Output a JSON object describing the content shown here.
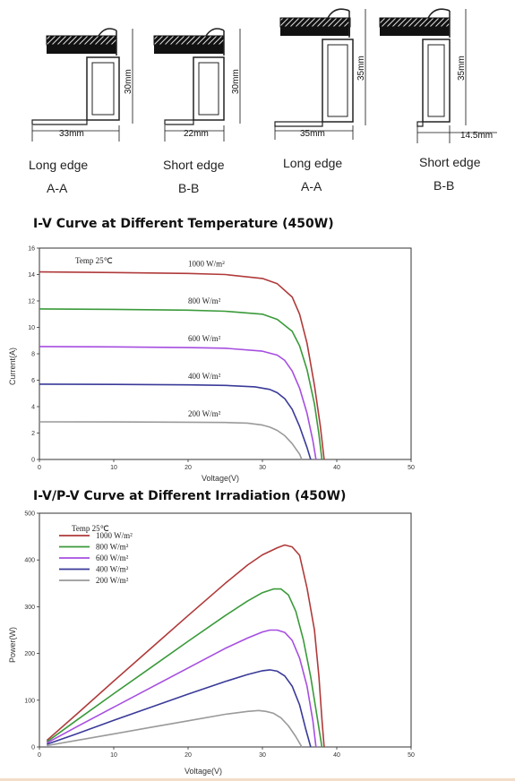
{
  "profiles": [
    {
      "label": "Long edge",
      "sub": "A-A",
      "width_label": "33mm",
      "height_label": "30mm"
    },
    {
      "label": "Short edge",
      "sub": "B-B",
      "width_label": "22mm",
      "height_label": "30mm"
    },
    {
      "label": "Long edge",
      "sub": "A-A",
      "width_label": "35mm",
      "height_label": "35mm"
    },
    {
      "label": "Short edge",
      "sub": "B-B",
      "width_label": "14.5mm",
      "height_label": "35mm"
    }
  ],
  "chart_data": [
    {
      "type": "line",
      "title": "I-V Curve at Different Temperature (450W)",
      "xlabel": "Voltage(V)",
      "ylabel": "Current(A)",
      "xlim": [
        0,
        50
      ],
      "ylim": [
        0,
        16
      ],
      "xticks": [
        "0",
        "10",
        "20",
        "30",
        "40",
        "50"
      ],
      "yticks": [
        "0",
        "2",
        "4",
        "6",
        "8",
        "10",
        "12",
        "14",
        "16"
      ],
      "annotations": [
        "Temp 25℃"
      ],
      "colors": [
        "#b03a3a",
        "#3a9a3a",
        "#a64ee0",
        "#3a3a99",
        "#9a9a9a"
      ],
      "series": [
        {
          "name": "1000 W/m²",
          "isc": 14.2,
          "voc": 38.3,
          "points": [
            [
              0,
              14.2
            ],
            [
              10,
              14.15
            ],
            [
              20,
              14.08
            ],
            [
              25,
              14.0
            ],
            [
              30,
              13.7
            ],
            [
              32,
              13.3
            ],
            [
              34,
              12.3
            ],
            [
              35,
              11.0
            ],
            [
              36,
              8.8
            ],
            [
              37,
              5.6
            ],
            [
              37.8,
              2.5
            ],
            [
              38.3,
              0
            ]
          ]
        },
        {
          "name": "800 W/m²",
          "isc": 11.4,
          "voc": 38.0,
          "points": [
            [
              0,
              11.4
            ],
            [
              10,
              11.36
            ],
            [
              20,
              11.3
            ],
            [
              25,
              11.22
            ],
            [
              30,
              11.0
            ],
            [
              32,
              10.6
            ],
            [
              34,
              9.7
            ],
            [
              35,
              8.6
            ],
            [
              36,
              6.8
            ],
            [
              37,
              4.2
            ],
            [
              37.6,
              1.9
            ],
            [
              38.0,
              0
            ]
          ]
        },
        {
          "name": "600 W/m²",
          "isc": 8.55,
          "voc": 37.2,
          "points": [
            [
              0,
              8.55
            ],
            [
              10,
              8.52
            ],
            [
              20,
              8.47
            ],
            [
              25,
              8.42
            ],
            [
              30,
              8.2
            ],
            [
              32,
              7.9
            ],
            [
              33,
              7.5
            ],
            [
              34,
              6.7
            ],
            [
              35,
              5.4
            ],
            [
              36,
              3.5
            ],
            [
              36.8,
              1.4
            ],
            [
              37.2,
              0
            ]
          ]
        },
        {
          "name": "400 W/m²",
          "isc": 5.7,
          "voc": 36.5,
          "points": [
            [
              0,
              5.7
            ],
            [
              10,
              5.68
            ],
            [
              20,
              5.65
            ],
            [
              25,
              5.61
            ],
            [
              29,
              5.5
            ],
            [
              31,
              5.3
            ],
            [
              32,
              5.05
            ],
            [
              33,
              4.6
            ],
            [
              34,
              3.8
            ],
            [
              35,
              2.5
            ],
            [
              36,
              0.9
            ],
            [
              36.5,
              0
            ]
          ]
        },
        {
          "name": "200 W/m²",
          "isc": 2.85,
          "voc": 35.3,
          "points": [
            [
              0,
              2.85
            ],
            [
              10,
              2.84
            ],
            [
              20,
              2.82
            ],
            [
              25,
              2.8
            ],
            [
              28,
              2.75
            ],
            [
              30,
              2.6
            ],
            [
              31,
              2.45
            ],
            [
              32,
              2.2
            ],
            [
              33,
              1.8
            ],
            [
              34,
              1.2
            ],
            [
              35,
              0.4
            ],
            [
              35.3,
              0
            ]
          ]
        }
      ]
    },
    {
      "type": "line",
      "title": "I-V/P-V Curve at Different Irradiation (450W)",
      "xlabel": "Voltage(V)",
      "ylabel": "Power(W)",
      "xlim": [
        0,
        50
      ],
      "ylim": [
        0,
        500
      ],
      "xticks": [
        "0",
        "10",
        "20",
        "30",
        "40",
        "50"
      ],
      "yticks": [
        "0",
        "100",
        "200",
        "300",
        "400",
        "500"
      ],
      "legend_header": "Temp 25℃",
      "legend_position": "top-left",
      "colors": [
        "#b03a3a",
        "#3a9a3a",
        "#a64ee0",
        "#3a3a99",
        "#9a9a9a"
      ],
      "series": [
        {
          "name": "1000 W/m²",
          "points": [
            [
              1,
              14
            ],
            [
              5,
              70
            ],
            [
              10,
              141
            ],
            [
              15,
              211
            ],
            [
              20,
              281
            ],
            [
              25,
              350
            ],
            [
              28,
              389
            ],
            [
              30,
              411
            ],
            [
              32,
              426
            ],
            [
              33,
              432
            ],
            [
              34,
              428
            ],
            [
              35,
              410
            ],
            [
              36,
              340
            ],
            [
              37,
              250
            ],
            [
              37.6,
              150
            ],
            [
              38.0,
              60
            ],
            [
              38.3,
              0
            ]
          ]
        },
        {
          "name": "800 W/m²",
          "points": [
            [
              1,
              11
            ],
            [
              5,
              57
            ],
            [
              10,
              114
            ],
            [
              15,
              170
            ],
            [
              20,
              226
            ],
            [
              25,
              281
            ],
            [
              28,
              312
            ],
            [
              30,
              330
            ],
            [
              31.5,
              338
            ],
            [
              32.5,
              338
            ],
            [
              33.5,
              325
            ],
            [
              34.5,
              290
            ],
            [
              35.5,
              230
            ],
            [
              36.5,
              150
            ],
            [
              37.3,
              70
            ],
            [
              38.0,
              0
            ]
          ]
        },
        {
          "name": "600 W/m²",
          "points": [
            [
              1,
              8.5
            ],
            [
              5,
              43
            ],
            [
              10,
              85
            ],
            [
              15,
              127
            ],
            [
              20,
              169
            ],
            [
              25,
              211
            ],
            [
              28,
              233
            ],
            [
              30,
              246
            ],
            [
              31,
              250
            ],
            [
              32,
              250
            ],
            [
              33,
              245
            ],
            [
              34,
              228
            ],
            [
              35,
              190
            ],
            [
              36,
              130
            ],
            [
              36.8,
              55
            ],
            [
              37.2,
              0
            ]
          ]
        },
        {
          "name": "400 W/m²",
          "points": [
            [
              1,
              5.7
            ],
            [
              5,
              28
            ],
            [
              10,
              57
            ],
            [
              15,
              85
            ],
            [
              20,
              113
            ],
            [
              25,
              140
            ],
            [
              28,
              155
            ],
            [
              30,
              163
            ],
            [
              31,
              165
            ],
            [
              32,
              162
            ],
            [
              33,
              152
            ],
            [
              34,
              130
            ],
            [
              35,
              90
            ],
            [
              35.8,
              40
            ],
            [
              36.5,
              0
            ]
          ]
        },
        {
          "name": "200 W/m²",
          "points": [
            [
              1,
              2.8
            ],
            [
              5,
              14
            ],
            [
              10,
              28
            ],
            [
              15,
              42
            ],
            [
              20,
              56
            ],
            [
              25,
              70
            ],
            [
              28,
              76
            ],
            [
              29.5,
              78
            ],
            [
              30.5,
              76
            ],
            [
              31.5,
              72
            ],
            [
              32.5,
              62
            ],
            [
              33.5,
              45
            ],
            [
              34.5,
              22
            ],
            [
              35.3,
              0
            ]
          ]
        }
      ]
    }
  ]
}
